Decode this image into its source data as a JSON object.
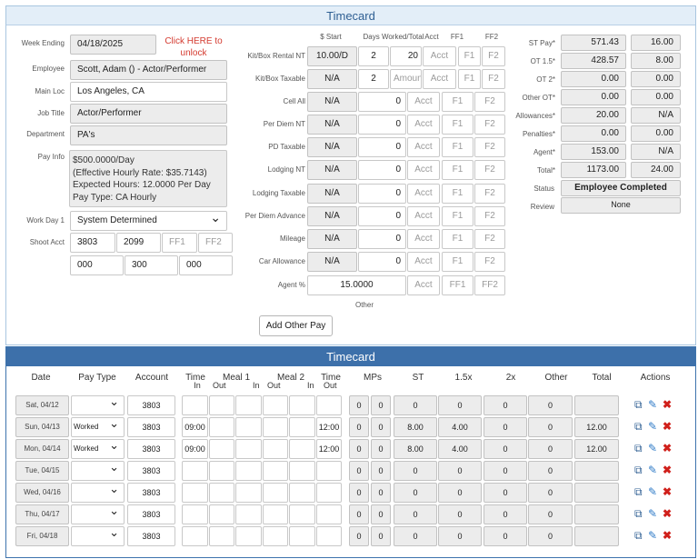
{
  "top": {
    "title": "Timecard",
    "labels": {
      "week_ending": "Week Ending",
      "employee": "Employee",
      "main_loc": "Main Loc",
      "job_title": "Job Title",
      "department": "Department",
      "pay_info": "Pay Info",
      "work_day": "Work Day 1",
      "shoot_acct": "Shoot Acct"
    },
    "week_ending": "04/18/2025",
    "unlock_text": "Click HERE to unlock",
    "employee": "Scott, Adam () - Actor/Performer",
    "main_loc": "Los Angeles, CA",
    "job_title": "Actor/Performer",
    "department": "PA's",
    "pay_info_lines": [
      "$500.0000/Day",
      "(Effective Hourly Rate: $35.7143)",
      "Expected Hours: 12.0000 Per Day",
      "Pay Type: CA Hourly"
    ],
    "work_day": "System Determined",
    "shoot_acct": [
      "3803",
      "2099",
      "FF1",
      "FF2"
    ],
    "shoot_acct2": [
      "000",
      "300",
      "000"
    ],
    "col_headers": {
      "start": "$ Start",
      "days": "Days Worked/Total",
      "acct": "Acct",
      "ff1": "FF1",
      "ff2": "FF2"
    },
    "placeholders": {
      "amount": "Amount",
      "acct": "Acct",
      "ff1": "F1",
      "ff2": "F2"
    },
    "rows": [
      {
        "label": "Kit/Box Rental NT",
        "start": "10.00/D",
        "days": "2",
        "total": "20",
        "acct": "Acct",
        "ff1": "F1",
        "ff2": "F2"
      },
      {
        "label": "Kit/Box Taxable",
        "start": "N/A",
        "days": "2",
        "total": "Amount",
        "acct": "Acct",
        "ff1": "F1",
        "ff2": "F2"
      },
      {
        "label": "Cell All",
        "start": "N/A",
        "total": "0",
        "acct": "Acct",
        "ff1": "F1",
        "ff2": "F2"
      },
      {
        "label": "Per Diem NT",
        "start": "N/A",
        "total": "0",
        "acct": "Acct",
        "ff1": "F1",
        "ff2": "F2"
      },
      {
        "label": "PD Taxable",
        "start": "N/A",
        "total": "0",
        "acct": "Acct",
        "ff1": "F1",
        "ff2": "F2"
      },
      {
        "label": "Lodging NT",
        "start": "N/A",
        "total": "0",
        "acct": "Acct",
        "ff1": "F1",
        "ff2": "F2"
      },
      {
        "label": "Lodging Taxable",
        "start": "N/A",
        "total": "0",
        "acct": "Acct",
        "ff1": "F1",
        "ff2": "F2"
      },
      {
        "label": "Per Diem Advance",
        "start": "N/A",
        "total": "0",
        "acct": "Acct",
        "ff1": "F1",
        "ff2": "F2"
      },
      {
        "label": "Mileage",
        "start": "N/A",
        "total": "0",
        "acct": "Acct",
        "ff1": "F1",
        "ff2": "F2"
      },
      {
        "label": "Car Allowance",
        "start": "N/A",
        "total": "0",
        "acct": "Acct",
        "ff1": "F1",
        "ff2": "F2"
      },
      {
        "label": "Agent %",
        "start": "15.0000",
        "acct": "Acct",
        "ff1": "FF1",
        "ff2": "FF2"
      }
    ],
    "other_label": "Other",
    "add_other_pay": "Add Other Pay",
    "summary": [
      {
        "label": "ST Pay*",
        "amount": "571.43",
        "hours": "16.00"
      },
      {
        "label": "OT 1.5*",
        "amount": "428.57",
        "hours": "8.00"
      },
      {
        "label": "OT 2*",
        "amount": "0.00",
        "hours": "0.00"
      },
      {
        "label": "Other OT*",
        "amount": "0.00",
        "hours": "0.00"
      },
      {
        "label": "Allowances*",
        "amount": "20.00",
        "hours": "N/A"
      },
      {
        "label": "Penalties*",
        "amount": "0.00",
        "hours": "0.00"
      },
      {
        "label": "Agent*",
        "amount": "153.00",
        "hours": "N/A"
      },
      {
        "label": "Total*",
        "amount": "1173.00",
        "hours": "24.00"
      }
    ],
    "status_label": "Status",
    "status": "Employee Completed",
    "review_label": "Review",
    "review": "None"
  },
  "grid": {
    "title": "Timecard",
    "headers": {
      "date": "Date",
      "pay_type": "Pay Type",
      "account": "Account",
      "time": "Time",
      "meal1": "Meal 1",
      "meal2": "Meal 2",
      "mps": "MPs",
      "st": "ST",
      "x15": "1.5x",
      "x2": "2x",
      "other": "Other",
      "total": "Total",
      "actions": "Actions",
      "in": "In",
      "out": "Out"
    },
    "rows": [
      {
        "date": "Sat, 04/12",
        "pay_type": "",
        "account": "3803",
        "time_in": "",
        "meal1_out": "",
        "meal1_in": "",
        "meal2_out": "",
        "meal2_in": "",
        "time_out": "",
        "mp1": "0",
        "mp2": "0",
        "st": "0",
        "x15": "0",
        "x2": "0",
        "other": "0",
        "total": ""
      },
      {
        "date": "Sun, 04/13",
        "pay_type": "Worked",
        "account": "3803",
        "time_in": "09:00",
        "meal1_out": "",
        "meal1_in": "",
        "meal2_out": "",
        "meal2_in": "",
        "time_out": "12:00",
        "mp1": "0",
        "mp2": "0",
        "st": "8.00",
        "x15": "4.00",
        "x2": "0",
        "other": "0",
        "total": "12.00"
      },
      {
        "date": "Mon, 04/14",
        "pay_type": "Worked",
        "account": "3803",
        "time_in": "09:00",
        "meal1_out": "",
        "meal1_in": "",
        "meal2_out": "",
        "meal2_in": "",
        "time_out": "12:00",
        "mp1": "0",
        "mp2": "0",
        "st": "8.00",
        "x15": "4.00",
        "x2": "0",
        "other": "0",
        "total": "12.00"
      },
      {
        "date": "Tue, 04/15",
        "pay_type": "",
        "account": "3803",
        "time_in": "",
        "meal1_out": "",
        "meal1_in": "",
        "meal2_out": "",
        "meal2_in": "",
        "time_out": "",
        "mp1": "0",
        "mp2": "0",
        "st": "0",
        "x15": "0",
        "x2": "0",
        "other": "0",
        "total": ""
      },
      {
        "date": "Wed, 04/16",
        "pay_type": "",
        "account": "3803",
        "time_in": "",
        "meal1_out": "",
        "meal1_in": "",
        "meal2_out": "",
        "meal2_in": "",
        "time_out": "",
        "mp1": "0",
        "mp2": "0",
        "st": "0",
        "x15": "0",
        "x2": "0",
        "other": "0",
        "total": ""
      },
      {
        "date": "Thu, 04/17",
        "pay_type": "",
        "account": "3803",
        "time_in": "",
        "meal1_out": "",
        "meal1_in": "",
        "meal2_out": "",
        "meal2_in": "",
        "time_out": "",
        "mp1": "0",
        "mp2": "0",
        "st": "0",
        "x15": "0",
        "x2": "0",
        "other": "0",
        "total": ""
      },
      {
        "date": "Fri, 04/18",
        "pay_type": "",
        "account": "3803",
        "time_in": "",
        "meal1_out": "",
        "meal1_in": "",
        "meal2_out": "",
        "meal2_in": "",
        "time_out": "",
        "mp1": "0",
        "mp2": "0",
        "st": "0",
        "x15": "0",
        "x2": "0",
        "other": "0",
        "total": ""
      }
    ],
    "action_icons": [
      "copy-icon",
      "edit-icon",
      "delete-icon"
    ]
  }
}
